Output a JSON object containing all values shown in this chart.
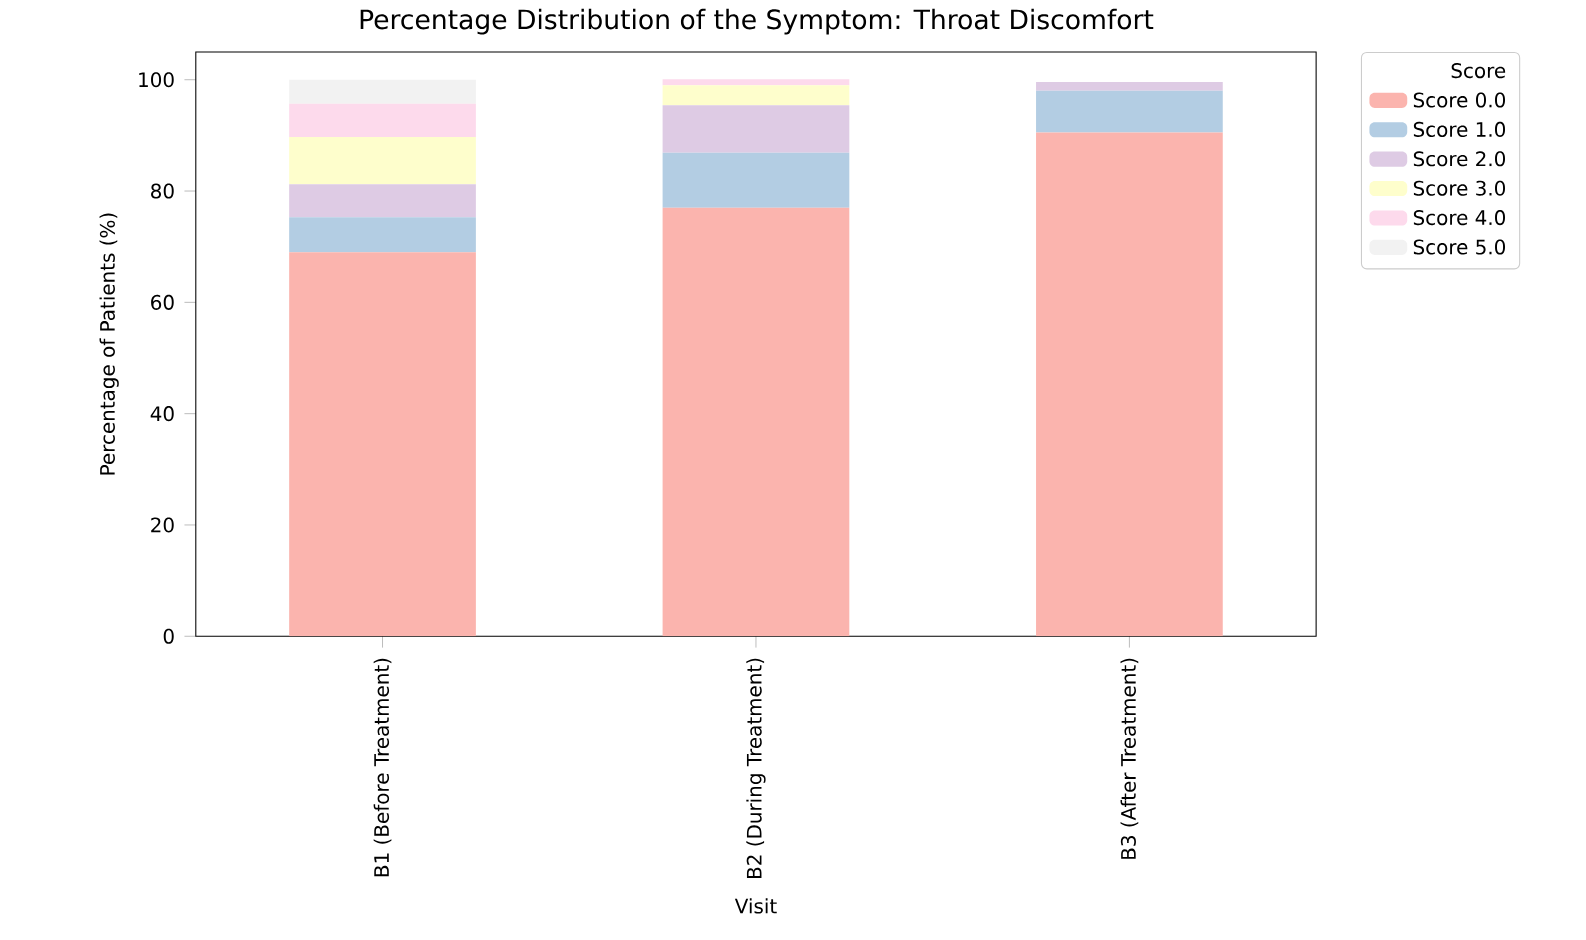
{
  "chart_data": {
    "type": "bar",
    "stacked": true,
    "title": "Percentage Distribution of the Symptom: Throat Discomfort",
    "xlabel": "Visit",
    "ylabel": "Percentage of Patients (%)",
    "legend_title": "Score",
    "legend": "top right",
    "categories": [
      "B1 (Before Treatment)",
      "B2 (During Treatment)",
      "B3 (After Treatment)"
    ],
    "ylim": [
      0,
      105
    ],
    "yticks": [
      {
        "value": 0,
        "label": "0"
      },
      {
        "value": 20,
        "label": "20"
      },
      {
        "value": 40,
        "label": "40"
      },
      {
        "value": 60,
        "label": "60"
      },
      {
        "value": 80,
        "label": "80"
      },
      {
        "value": 100,
        "label": "100"
      }
    ],
    "series": [
      {
        "name": "Score 0.0",
        "color": "#fbb4ae",
        "values": [
          69.0,
          77.0,
          90.5
        ]
      },
      {
        "name": "Score 1.0",
        "color": "#b3cde3",
        "values": [
          6.3,
          9.9,
          7.5
        ]
      },
      {
        "name": "Score 2.0",
        "color": "#decbe4",
        "values": [
          5.9,
          8.5,
          1.6
        ]
      },
      {
        "name": "Score 3.0",
        "color": "#fefecc",
        "values": [
          8.5,
          3.6,
          null
        ]
      },
      {
        "name": "Score 4.0",
        "color": "#fddaec",
        "values": [
          6.0,
          1.1,
          0
        ]
      },
      {
        "name": "Score 5.0",
        "color": "#f2f2f2",
        "values": [
          4.3,
          0,
          0
        ]
      }
    ]
  }
}
